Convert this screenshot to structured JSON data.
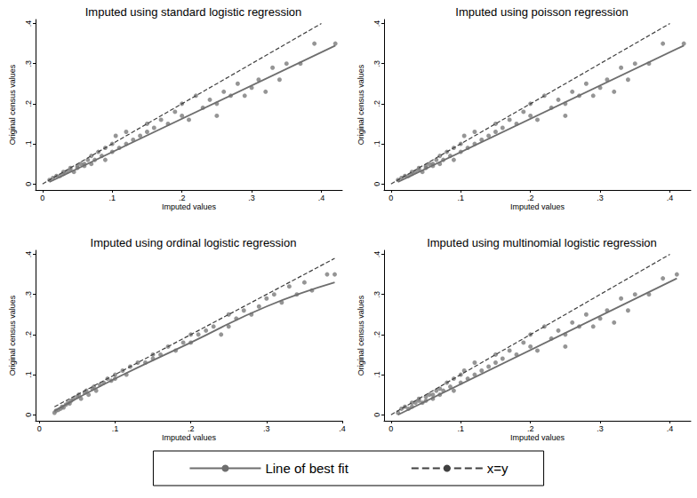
{
  "chart_data": [
    {
      "type": "scatter",
      "title": "Imputed using standard logistic regression",
      "x_label": "Imputed values",
      "y_label": "Original census values",
      "xlim": [
        -0.01,
        0.43
      ],
      "ylim": [
        -0.015,
        0.41
      ],
      "xticks": [
        0,
        {
          "value": 0.1,
          "label": ".1"
        },
        {
          "value": 0.2,
          "label": ".2"
        },
        {
          "value": 0.3,
          "label": ".3"
        },
        {
          "value": 0.4,
          "label": ".4"
        }
      ],
      "yticks": [
        0,
        {
          "value": 0.1,
          "label": ".1"
        },
        {
          "value": 0.2,
          "label": ".2"
        },
        {
          "value": 0.3,
          "label": ".3"
        },
        {
          "value": 0.4,
          "label": ".4"
        }
      ],
      "legend": "bottom",
      "series": [
        {
          "type": "scatter",
          "color": "#7a7a7a",
          "marker": "circle",
          "x": [
            0.01,
            0.015,
            0.02,
            0.025,
            0.03,
            0.03,
            0.035,
            0.04,
            0.04,
            0.045,
            0.05,
            0.05,
            0.055,
            0.06,
            0.06,
            0.065,
            0.07,
            0.07,
            0.075,
            0.08,
            0.085,
            0.09,
            0.09,
            0.1,
            0.1,
            0.105,
            0.11,
            0.12,
            0.12,
            0.13,
            0.14,
            0.15,
            0.15,
            0.16,
            0.17,
            0.18,
            0.19,
            0.2,
            0.2,
            0.21,
            0.22,
            0.23,
            0.24,
            0.25,
            0.25,
            0.26,
            0.27,
            0.28,
            0.29,
            0.3,
            0.31,
            0.32,
            0.33,
            0.34,
            0.35,
            0.37,
            0.39,
            0.42
          ],
          "values": [
            0.01,
            0.015,
            0.02,
            0.02,
            0.03,
            0.025,
            0.03,
            0.035,
            0.04,
            0.03,
            0.045,
            0.04,
            0.05,
            0.05,
            0.045,
            0.06,
            0.07,
            0.05,
            0.06,
            0.08,
            0.07,
            0.09,
            0.06,
            0.1,
            0.08,
            0.12,
            0.09,
            0.1,
            0.13,
            0.11,
            0.12,
            0.13,
            0.15,
            0.14,
            0.16,
            0.15,
            0.18,
            0.17,
            0.2,
            0.16,
            0.22,
            0.19,
            0.21,
            0.2,
            0.17,
            0.23,
            0.22,
            0.25,
            0.22,
            0.24,
            0.26,
            0.23,
            0.29,
            0.26,
            0.3,
            0.3,
            0.35,
            0.35
          ]
        },
        {
          "name": "Line of best fit",
          "type": "line",
          "color": "#6e6e6e",
          "line_style": "solid",
          "x": [
            0.01,
            0.42
          ],
          "values": [
            0.005,
            0.345
          ]
        },
        {
          "name": "x=y",
          "type": "line",
          "color": "#404040",
          "line_style": "dashed",
          "x": [
            0,
            0.4
          ],
          "values": [
            0,
            0.4
          ]
        }
      ]
    },
    {
      "type": "scatter",
      "title": "Imputed using poisson regression",
      "x_label": "Imputed values",
      "y_label": "Original census values",
      "xlim": [
        -0.01,
        0.43
      ],
      "ylim": [
        -0.015,
        0.41
      ],
      "xticks": [
        0,
        {
          "value": 0.1,
          "label": ".1"
        },
        {
          "value": 0.2,
          "label": ".2"
        },
        {
          "value": 0.3,
          "label": ".3"
        },
        {
          "value": 0.4,
          "label": ".4"
        }
      ],
      "yticks": [
        0,
        {
          "value": 0.1,
          "label": ".1"
        },
        {
          "value": 0.2,
          "label": ".2"
        },
        {
          "value": 0.3,
          "label": ".3"
        },
        {
          "value": 0.4,
          "label": ".4"
        }
      ],
      "legend": "bottom",
      "series": [
        {
          "type": "scatter",
          "color": "#7a7a7a",
          "marker": "circle",
          "x": [
            0.01,
            0.015,
            0.02,
            0.025,
            0.03,
            0.03,
            0.035,
            0.04,
            0.04,
            0.045,
            0.05,
            0.05,
            0.055,
            0.06,
            0.06,
            0.065,
            0.07,
            0.07,
            0.075,
            0.08,
            0.085,
            0.09,
            0.09,
            0.1,
            0.1,
            0.105,
            0.11,
            0.12,
            0.12,
            0.13,
            0.14,
            0.15,
            0.15,
            0.16,
            0.17,
            0.18,
            0.19,
            0.2,
            0.2,
            0.21,
            0.22,
            0.23,
            0.24,
            0.25,
            0.25,
            0.26,
            0.27,
            0.28,
            0.29,
            0.3,
            0.31,
            0.32,
            0.33,
            0.34,
            0.35,
            0.37,
            0.39,
            0.42
          ],
          "values": [
            0.01,
            0.015,
            0.02,
            0.02,
            0.03,
            0.025,
            0.03,
            0.035,
            0.04,
            0.03,
            0.045,
            0.04,
            0.05,
            0.05,
            0.045,
            0.06,
            0.07,
            0.05,
            0.06,
            0.08,
            0.07,
            0.09,
            0.06,
            0.1,
            0.08,
            0.12,
            0.09,
            0.1,
            0.13,
            0.11,
            0.12,
            0.13,
            0.15,
            0.14,
            0.16,
            0.15,
            0.18,
            0.17,
            0.2,
            0.16,
            0.22,
            0.19,
            0.21,
            0.2,
            0.17,
            0.23,
            0.22,
            0.25,
            0.22,
            0.24,
            0.26,
            0.23,
            0.29,
            0.26,
            0.3,
            0.3,
            0.35,
            0.35
          ]
        },
        {
          "name": "Line of best fit",
          "type": "line",
          "color": "#6e6e6e",
          "line_style": "solid",
          "x": [
            0.01,
            0.42
          ],
          "values": [
            0.005,
            0.345
          ]
        },
        {
          "name": "x=y",
          "type": "line",
          "color": "#404040",
          "line_style": "dashed",
          "x": [
            0,
            0.4
          ],
          "values": [
            0,
            0.4
          ]
        }
      ]
    },
    {
      "type": "scatter",
      "title": "Imputed using ordinal logistic regression",
      "x_label": "Imputed values",
      "y_label": "Original census values",
      "xlim": [
        -0.005,
        0.4
      ],
      "ylim": [
        -0.015,
        0.41
      ],
      "xticks": [
        0,
        {
          "value": 0.1,
          "label": ".1"
        },
        {
          "value": 0.2,
          "label": ".2"
        },
        {
          "value": 0.3,
          "label": ".3"
        },
        {
          "value": 0.4,
          "label": ".4"
        }
      ],
      "yticks": [
        0,
        {
          "value": 0.1,
          "label": ".1"
        },
        {
          "value": 0.2,
          "label": ".2"
        },
        {
          "value": 0.3,
          "label": ".3"
        },
        {
          "value": 0.4,
          "label": ".4"
        }
      ],
      "legend": "bottom",
      "series": [
        {
          "type": "scatter",
          "color": "#7a7a7a",
          "marker": "circle",
          "x": [
            0.02,
            0.022,
            0.025,
            0.028,
            0.03,
            0.032,
            0.035,
            0.038,
            0.04,
            0.042,
            0.045,
            0.05,
            0.052,
            0.055,
            0.06,
            0.062,
            0.065,
            0.07,
            0.072,
            0.075,
            0.08,
            0.085,
            0.09,
            0.095,
            0.1,
            0.1,
            0.11,
            0.115,
            0.12,
            0.13,
            0.14,
            0.15,
            0.15,
            0.16,
            0.17,
            0.18,
            0.19,
            0.2,
            0.2,
            0.21,
            0.22,
            0.23,
            0.24,
            0.25,
            0.25,
            0.26,
            0.27,
            0.28,
            0.29,
            0.3,
            0.31,
            0.32,
            0.33,
            0.34,
            0.35,
            0.36,
            0.38,
            0.39
          ],
          "values": [
            0.005,
            0.01,
            0.012,
            0.015,
            0.02,
            0.018,
            0.025,
            0.03,
            0.028,
            0.035,
            0.04,
            0.045,
            0.05,
            0.04,
            0.055,
            0.06,
            0.05,
            0.065,
            0.07,
            0.06,
            0.075,
            0.08,
            0.09,
            0.085,
            0.1,
            0.09,
            0.11,
            0.1,
            0.12,
            0.13,
            0.13,
            0.15,
            0.14,
            0.15,
            0.17,
            0.16,
            0.18,
            0.2,
            0.18,
            0.2,
            0.21,
            0.22,
            0.2,
            0.25,
            0.22,
            0.24,
            0.26,
            0.25,
            0.27,
            0.29,
            0.3,
            0.28,
            0.32,
            0.3,
            0.33,
            0.31,
            0.35,
            0.35
          ]
        },
        {
          "name": "Line of best fit",
          "type": "line",
          "color": "#6e6e6e",
          "line_style": "solid",
          "x": [
            0.02,
            0.1,
            0.2,
            0.3,
            0.39
          ],
          "values": [
            0.01,
            0.09,
            0.18,
            0.27,
            0.33
          ]
        },
        {
          "name": "x=y",
          "type": "line",
          "color": "#404040",
          "line_style": "dashed",
          "x": [
            0.02,
            0.39
          ],
          "values": [
            0.02,
            0.39
          ]
        }
      ]
    },
    {
      "type": "scatter",
      "title": "Imputed using multinomial logistic regression",
      "x_label": "Imputed values",
      "y_label": "Original census values",
      "xlim": [
        -0.01,
        0.43
      ],
      "ylim": [
        -0.015,
        0.41
      ],
      "xticks": [
        0,
        {
          "value": 0.1,
          "label": ".1"
        },
        {
          "value": 0.2,
          "label": ".2"
        },
        {
          "value": 0.3,
          "label": ".3"
        },
        {
          "value": 0.4,
          "label": ".4"
        }
      ],
      "yticks": [
        0,
        {
          "value": 0.1,
          "label": ".1"
        },
        {
          "value": 0.2,
          "label": ".2"
        },
        {
          "value": 0.3,
          "label": ".3"
        },
        {
          "value": 0.4,
          "label": ".4"
        }
      ],
      "legend": "bottom",
      "series": [
        {
          "type": "scatter",
          "color": "#7a7a7a",
          "marker": "circle",
          "x": [
            0.01,
            0.015,
            0.02,
            0.025,
            0.03,
            0.03,
            0.035,
            0.04,
            0.04,
            0.045,
            0.05,
            0.05,
            0.055,
            0.06,
            0.06,
            0.065,
            0.07,
            0.07,
            0.075,
            0.08,
            0.085,
            0.09,
            0.09,
            0.1,
            0.1,
            0.105,
            0.11,
            0.12,
            0.12,
            0.13,
            0.14,
            0.15,
            0.15,
            0.16,
            0.17,
            0.18,
            0.19,
            0.2,
            0.2,
            0.21,
            0.22,
            0.23,
            0.24,
            0.25,
            0.25,
            0.26,
            0.27,
            0.28,
            0.29,
            0.3,
            0.31,
            0.32,
            0.33,
            0.34,
            0.35,
            0.37,
            0.39,
            0.41
          ],
          "values": [
            0.005,
            0.015,
            0.02,
            0.015,
            0.03,
            0.02,
            0.03,
            0.035,
            0.04,
            0.03,
            0.045,
            0.035,
            0.05,
            0.05,
            0.04,
            0.06,
            0.065,
            0.05,
            0.06,
            0.08,
            0.07,
            0.09,
            0.06,
            0.1,
            0.08,
            0.11,
            0.09,
            0.1,
            0.13,
            0.11,
            0.12,
            0.13,
            0.15,
            0.14,
            0.16,
            0.15,
            0.18,
            0.17,
            0.2,
            0.16,
            0.22,
            0.19,
            0.21,
            0.2,
            0.17,
            0.23,
            0.22,
            0.25,
            0.22,
            0.24,
            0.26,
            0.23,
            0.29,
            0.26,
            0.3,
            0.3,
            0.34,
            0.35
          ]
        },
        {
          "name": "Line of best fit",
          "type": "line",
          "color": "#6e6e6e",
          "line_style": "solid",
          "x": [
            0.01,
            0.41
          ],
          "values": [
            0,
            0.34
          ]
        },
        {
          "name": "x=y",
          "type": "line",
          "color": "#404040",
          "line_style": "dashed",
          "x": [
            0,
            0.4
          ],
          "values": [
            0,
            0.4
          ]
        }
      ]
    }
  ]
}
